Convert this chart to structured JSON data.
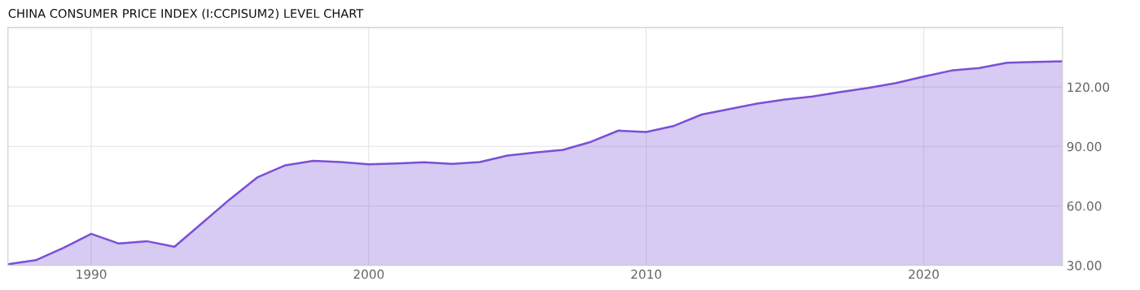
{
  "chart_data": {
    "type": "area",
    "title": "CHINA CONSUMER PRICE INDEX (I:CCPISUM2) LEVEL CHART",
    "x": [
      1987,
      1988,
      1989,
      1990,
      1991,
      1992,
      1993,
      1994,
      1995,
      1996,
      1997,
      1998,
      1999,
      2000,
      2001,
      2002,
      2003,
      2004,
      2005,
      2006,
      2007,
      2008,
      2009,
      2010,
      2011,
      2012,
      2013,
      2014,
      2015,
      2016,
      2017,
      2018,
      2019,
      2020,
      2021,
      2022,
      2023,
      2024,
      2025
    ],
    "series": [
      {
        "color": "#7b4fd6",
        "values": [
          30.6,
          32.6,
          38.8,
          45.9,
          41.0,
          42.2,
          39.4,
          51.4,
          63.4,
          74.5,
          80.5,
          82.7,
          82.1,
          81.0,
          81.4,
          82.0,
          81.2,
          82.1,
          85.4,
          86.9,
          88.3,
          92.3,
          98.0,
          97.3,
          100.4,
          106.1,
          108.9,
          111.6,
          113.7,
          115.2,
          117.5,
          119.5,
          122.0,
          125.3,
          128.3,
          129.6,
          132.2,
          132.6,
          133.0
        ]
      }
    ],
    "xlim": [
      1987,
      2025
    ],
    "xticks": [
      1990,
      2000,
      2010,
      2020
    ],
    "ylim": [
      30,
      150
    ],
    "yticks": [
      {
        "value": 30,
        "label": "30.00"
      },
      {
        "value": 60,
        "label": "60.00"
      },
      {
        "value": 90,
        "label": "90.00"
      },
      {
        "value": 120,
        "label": "120.00"
      }
    ],
    "grid": true
  }
}
